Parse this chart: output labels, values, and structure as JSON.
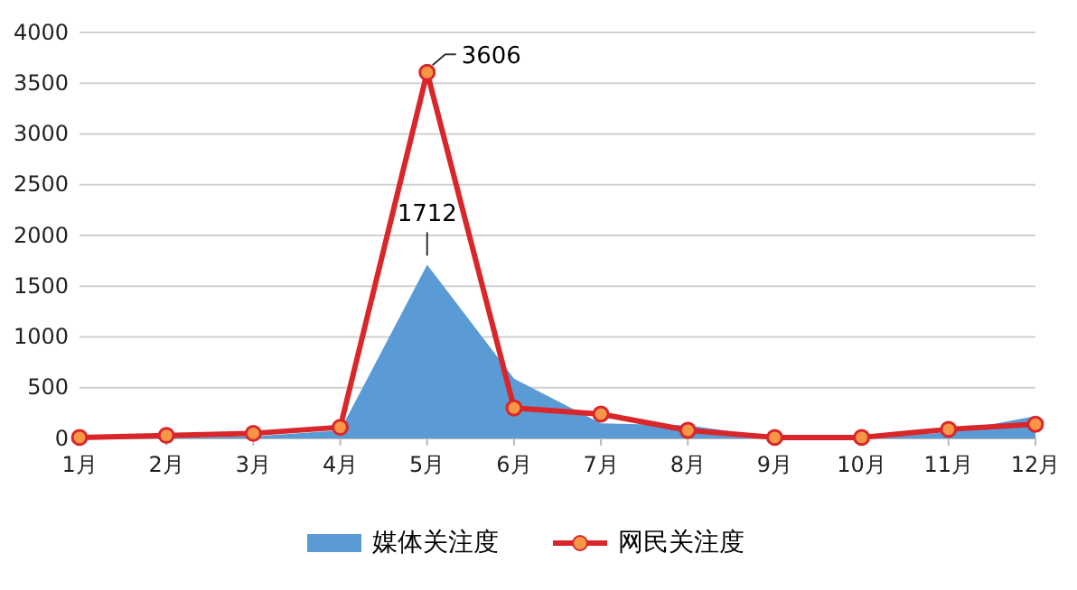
{
  "chart_data": {
    "type": "line",
    "categories": [
      "1月",
      "2月",
      "3月",
      "4月",
      "5月",
      "6月",
      "7月",
      "8月",
      "9月",
      "10月",
      "11月",
      "12月"
    ],
    "ylim": [
      0,
      4000
    ],
    "yticks": [
      0,
      500,
      1000,
      1500,
      2000,
      2500,
      3000,
      3500,
      4000
    ],
    "grid": "y",
    "legend": "bottom",
    "series": [
      {
        "name": "媒体关注度",
        "type": "area",
        "color": "#5b9bd5",
        "values": [
          0,
          10,
          20,
          80,
          1712,
          590,
          150,
          130,
          10,
          0,
          60,
          220
        ],
        "value_labels": [
          null,
          null,
          null,
          null,
          "1712",
          null,
          null,
          null,
          null,
          null,
          null,
          null
        ]
      },
      {
        "name": "网民关注度",
        "color": "#d9262b",
        "marker": "circle",
        "values": [
          10,
          30,
          50,
          110,
          3606,
          300,
          240,
          80,
          10,
          10,
          90,
          140
        ],
        "value_labels": [
          null,
          null,
          null,
          null,
          "3606",
          null,
          null,
          null,
          null,
          null,
          null,
          null
        ]
      }
    ]
  }
}
